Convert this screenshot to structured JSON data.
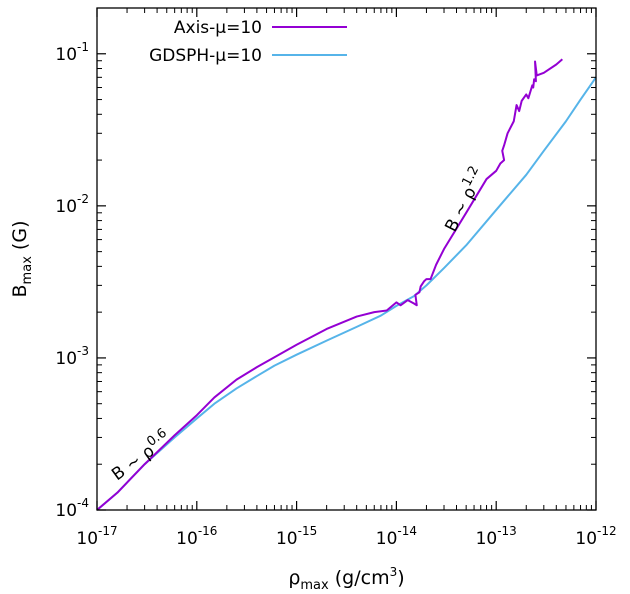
{
  "chart_data": {
    "type": "line",
    "xlabel": {
      "base": "ρ",
      "sub": "max",
      "unit_pre": " (g/cm",
      "unit_sup": "3",
      "unit_post": ")"
    },
    "ylabel": {
      "base": "B",
      "sub": "max",
      "unit": " (G)"
    },
    "xscale": "log",
    "yscale": "log",
    "xlim": [
      1e-17,
      1e-12
    ],
    "ylim": [
      0.0001,
      0.2
    ],
    "grid": false,
    "legend_position": "top-left",
    "x_ticks": [
      {
        "value": 1e-17,
        "base": "10",
        "exp": "-17"
      },
      {
        "value": 1e-16,
        "base": "10",
        "exp": "-16"
      },
      {
        "value": 1e-15,
        "base": "10",
        "exp": "-15"
      },
      {
        "value": 1e-14,
        "base": "10",
        "exp": "-14"
      },
      {
        "value": 1e-13,
        "base": "10",
        "exp": "-13"
      },
      {
        "value": 1e-12,
        "base": "10",
        "exp": "-12"
      }
    ],
    "y_ticks": [
      {
        "value": 0.0001,
        "base": "10",
        "exp": "-4"
      },
      {
        "value": 0.001,
        "base": "10",
        "exp": "-3"
      },
      {
        "value": 0.01,
        "base": "10",
        "exp": "-2"
      },
      {
        "value": 0.1,
        "base": "10",
        "exp": "-1"
      }
    ],
    "annotations": [
      {
        "base": "B ~ ρ",
        "sup": "0.6",
        "x": 3e-17,
        "y": 0.00021,
        "angle": -36
      },
      {
        "base": "B ~ ρ",
        "sup": "1.2",
        "x": 5.5e-14,
        "y": 0.0105,
        "angle": -63
      }
    ],
    "series": [
      {
        "name": "Axis-μ=10",
        "color": "#9400d3",
        "x": [
          1e-17,
          1.6e-17,
          3e-17,
          6e-17,
          1e-16,
          1.5e-16,
          2.5e-16,
          4e-16,
          6e-16,
          1e-15,
          2e-15,
          4e-15,
          6e-15,
          8e-15,
          1e-14,
          1.1e-14,
          1.3e-14,
          1.5e-14,
          1.6e-14,
          1.55e-14,
          1.7e-14,
          1.75e-14,
          1.9e-14,
          2e-14,
          2.2e-14,
          2.5e-14,
          3e-14,
          5e-14,
          8e-14,
          1e-13,
          1.1e-13,
          1.2e-13,
          1.15e-13,
          1.2e-13,
          1.3e-13,
          1.5e-13,
          1.6e-13,
          1.7e-13,
          1.8e-13,
          2e-13,
          2.1e-13,
          2.3e-13,
          2.35e-13,
          2.4e-13,
          2.5e-13,
          2.45e-13,
          2.55e-13,
          3e-13,
          4e-13,
          4.6e-13
        ],
        "y": [
          0.0001,
          0.00013,
          0.0002,
          0.00031,
          0.00042,
          0.00055,
          0.00072,
          0.00087,
          0.00101,
          0.00122,
          0.00155,
          0.00187,
          0.002,
          0.00205,
          0.00232,
          0.00222,
          0.0024,
          0.00228,
          0.00222,
          0.0026,
          0.0027,
          0.00295,
          0.0032,
          0.0033,
          0.0033,
          0.0041,
          0.0052,
          0.009,
          0.015,
          0.017,
          0.019,
          0.02,
          0.023,
          0.025,
          0.03,
          0.036,
          0.046,
          0.042,
          0.049,
          0.054,
          0.051,
          0.062,
          0.06,
          0.068,
          0.066,
          0.089,
          0.072,
          0.075,
          0.085,
          0.092
        ]
      },
      {
        "name": "GDSPH-μ=10",
        "color": "#56b4e9",
        "x": [
          1e-17,
          1.6e-17,
          3e-17,
          6e-17,
          1e-16,
          1.5e-16,
          2.5e-16,
          4e-16,
          6e-16,
          1e-15,
          2e-15,
          4e-15,
          7e-15,
          1e-14,
          1.5e-14,
          2e-14,
          3e-14,
          5e-14,
          1e-13,
          2e-13,
          3e-13,
          5e-13,
          7e-13,
          1e-12
        ],
        "y": [
          0.0001,
          0.00013,
          0.0002,
          0.0003,
          0.0004,
          0.0005,
          0.00063,
          0.00076,
          0.00089,
          0.00105,
          0.0013,
          0.0016,
          0.0019,
          0.0022,
          0.00255,
          0.003,
          0.0039,
          0.0055,
          0.0094,
          0.016,
          0.023,
          0.036,
          0.05,
          0.07
        ]
      }
    ]
  }
}
